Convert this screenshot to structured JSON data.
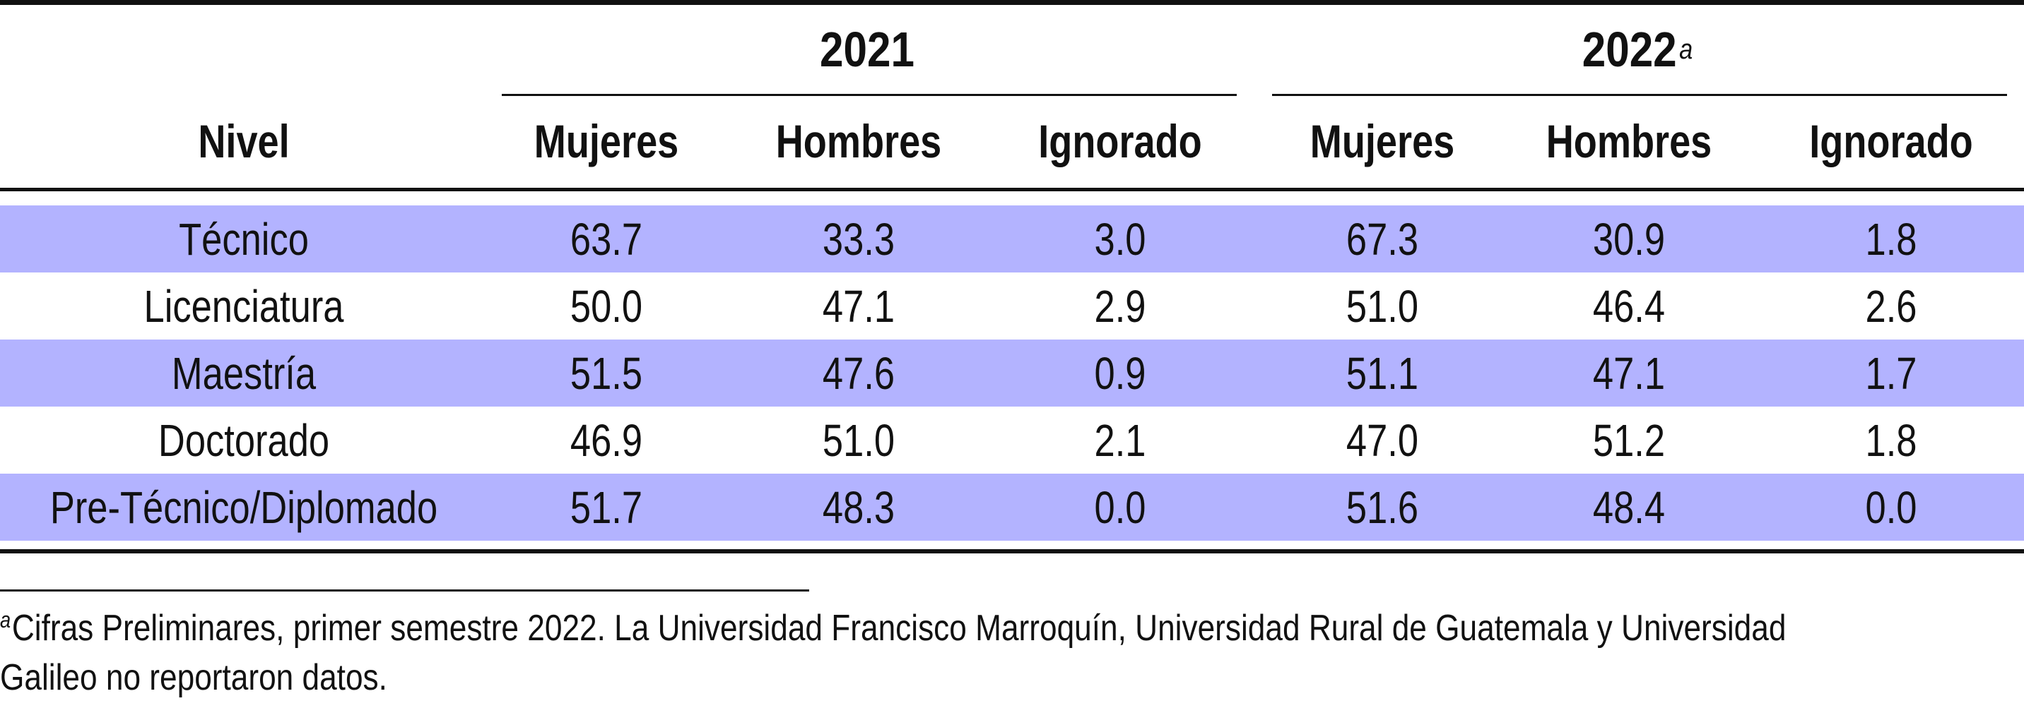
{
  "table": {
    "header": {
      "nivel": "Nivel",
      "group_2021": "2021",
      "group_2022": "2022",
      "group_2022_note": "a",
      "columns": [
        "Mujeres",
        "Hombres",
        "Ignorado",
        "Mujeres",
        "Hombres",
        "Ignorado"
      ]
    },
    "rows": [
      {
        "nivel": "Técnico",
        "values": [
          "63.7",
          "33.3",
          "3.0",
          "67.3",
          "30.9",
          "1.8"
        ],
        "shaded": true
      },
      {
        "nivel": "Licenciatura",
        "values": [
          "50.0",
          "47.1",
          "2.9",
          "51.0",
          "46.4",
          "2.6"
        ],
        "shaded": false
      },
      {
        "nivel": "Maestría",
        "values": [
          "51.5",
          "47.6",
          "0.9",
          "51.1",
          "47.1",
          "1.7"
        ],
        "shaded": true
      },
      {
        "nivel": "Doctorado",
        "values": [
          "46.9",
          "51.0",
          "2.1",
          "47.0",
          "51.2",
          "1.8"
        ],
        "shaded": false
      },
      {
        "nivel": "Pre-Técnico/Diplomado",
        "values": [
          "51.7",
          "48.3",
          "0.0",
          "51.6",
          "48.4",
          "0.0"
        ],
        "shaded": true
      }
    ],
    "row_shade_color": "#b3b3ff"
  },
  "footnote": {
    "marker": "a",
    "line1": "Cifras Preliminares, primer semestre 2022.  La Universidad Francisco Marroquín, Universidad Rural de Guatemala y Universidad",
    "line2": "Galileo no reportaron datos."
  }
}
